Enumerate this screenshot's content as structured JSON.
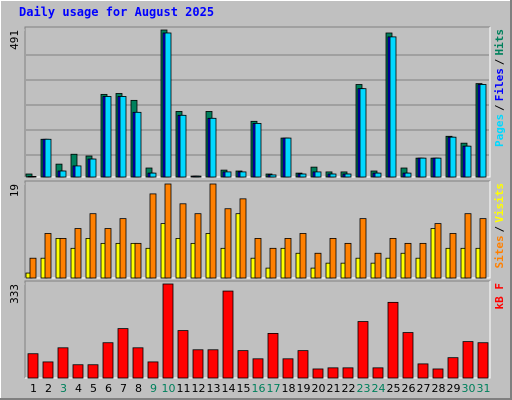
{
  "title": "Daily usage for August 2025",
  "chart_data": [
    {
      "type": "bar",
      "title": "Daily usage for August 2025",
      "ylim": [
        0,
        491
      ],
      "yticks": [
        491
      ],
      "legend_separator": "/",
      "series": [
        {
          "name": "Hits",
          "color": "#00805c",
          "values": [
            10,
            126,
            43,
            76,
            70,
            276,
            279,
            256,
            30,
            491,
            219,
            3,
            219,
            23,
            20,
            186,
            10,
            130,
            13,
            33,
            17,
            17,
            309,
            20,
            481,
            30,
            63,
            63,
            136,
            113,
            312
          ]
        },
        {
          "name": "Files",
          "color": "#0000ff",
          "values": [
            2,
            126,
            20,
            37,
            60,
            269,
            269,
            216,
            13,
            481,
            206,
            3,
            196,
            17,
            17,
            179,
            7,
            130,
            10,
            17,
            10,
            10,
            295,
            13,
            468,
            13,
            63,
            63,
            133,
            103,
            309
          ]
        },
        {
          "name": "Pages",
          "color": "#00d8ff",
          "values": [
            2,
            126,
            20,
            37,
            60,
            269,
            269,
            216,
            13,
            481,
            206,
            3,
            196,
            17,
            17,
            179,
            7,
            130,
            10,
            17,
            10,
            10,
            295,
            13,
            468,
            13,
            63,
            63,
            133,
            103,
            309
          ]
        }
      ]
    },
    {
      "type": "bar",
      "ylim": [
        0,
        19
      ],
      "yticks": [
        19
      ],
      "legend_separator": "/",
      "series": [
        {
          "name": "Visits",
          "color": "#ffff00",
          "values": [
            1,
            4,
            8,
            6,
            8,
            7,
            7,
            7,
            6,
            11,
            8,
            7,
            9,
            6,
            13,
            4,
            2,
            6,
            5,
            2,
            3,
            3,
            4,
            3,
            4,
            5,
            4,
            10,
            6,
            6,
            6
          ]
        },
        {
          "name": "Sites",
          "color": "#ff8000",
          "values": [
            4,
            9,
            8,
            10,
            13,
            10,
            12,
            7,
            17,
            19,
            15,
            13,
            19,
            14,
            16,
            8,
            6,
            8,
            9,
            5,
            8,
            7,
            12,
            5,
            8,
            7,
            7,
            11,
            9,
            13,
            12
          ]
        }
      ]
    },
    {
      "type": "bar",
      "ylim": [
        0,
        333
      ],
      "yticks": [
        333
      ],
      "categories": [
        "1",
        "2",
        "3",
        "4",
        "5",
        "6",
        "7",
        "8",
        "9",
        "10",
        "11",
        "12",
        "13",
        "14",
        "15",
        "16",
        "17",
        "18",
        "19",
        "20",
        "21",
        "22",
        "23",
        "24",
        "25",
        "26",
        "27",
        "28",
        "29",
        "30",
        "31"
      ],
      "category_colors": [
        "#000000",
        "#000000",
        "#00805c",
        "#000000",
        "#000000",
        "#000000",
        "#000000",
        "#000000",
        "#00805c",
        "#00805c",
        "#000000",
        "#000000",
        "#000000",
        "#000000",
        "#000000",
        "#00805c",
        "#00805c",
        "#000000",
        "#000000",
        "#000000",
        "#000000",
        "#000000",
        "#00805c",
        "#00805c",
        "#000000",
        "#000000",
        "#000000",
        "#000000",
        "#000000",
        "#00805c",
        "#00805c"
      ],
      "series": [
        {
          "name": "kB F",
          "color": "#ff0000",
          "values": [
            86,
            57,
            107,
            47,
            47,
            125,
            175,
            107,
            57,
            333,
            168,
            100,
            100,
            308,
            97,
            68,
            158,
            68,
            97,
            32,
            36,
            36,
            200,
            36,
            268,
            161,
            50,
            32,
            72,
            129,
            125
          ]
        }
      ]
    }
  ]
}
